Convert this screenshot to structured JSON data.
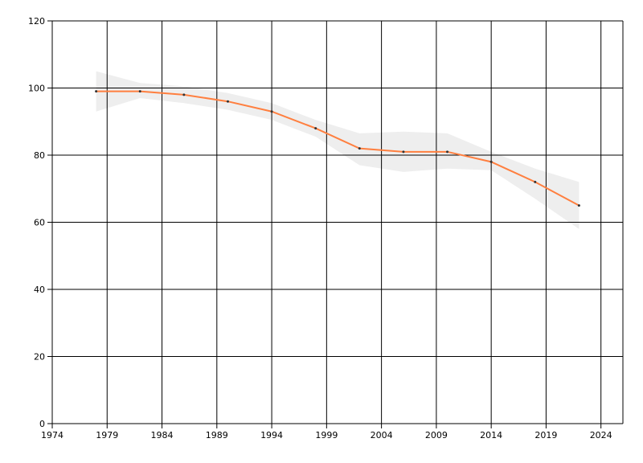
{
  "chart_data": {
    "type": "line",
    "x": [
      1978,
      1982,
      1986,
      1990,
      1994,
      1998,
      2002,
      2006,
      2010,
      2014,
      2018,
      2022
    ],
    "values": [
      99,
      99,
      98,
      96,
      93,
      88,
      82,
      81,
      81,
      78,
      72,
      65
    ],
    "lower": [
      93,
      97,
      95.5,
      93.5,
      90.5,
      85.5,
      77,
      75,
      76,
      75.5,
      67,
      58
    ],
    "upper": [
      105,
      101.5,
      100.5,
      98.5,
      95.5,
      90.5,
      86.5,
      87,
      86.5,
      81,
      76,
      72
    ],
    "color": "#ff7f3f",
    "band_color": "#eeeeee",
    "xlim": [
      1974,
      2026
    ],
    "xticks": [
      1974,
      1979,
      1984,
      1989,
      1994,
      1999,
      2004,
      2009,
      2014,
      2019,
      2024
    ],
    "ylim": [
      0,
      120
    ],
    "yticks": [
      0,
      20,
      40,
      60,
      80,
      100,
      120
    ],
    "grid": true
  }
}
